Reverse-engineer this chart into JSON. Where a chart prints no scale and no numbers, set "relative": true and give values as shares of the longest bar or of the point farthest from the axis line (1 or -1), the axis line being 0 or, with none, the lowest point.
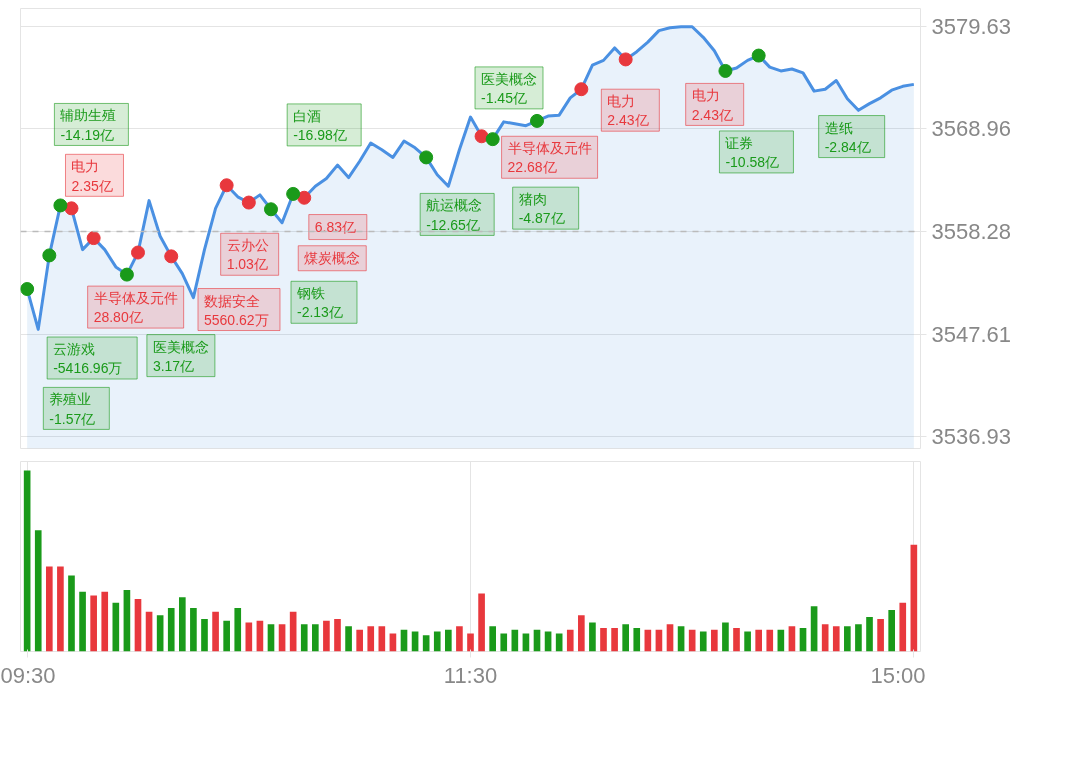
{
  "chart_data": [
    {
      "type": "area",
      "ylim": [
        3535.7,
        3581.5
      ],
      "categories": [
        null,
        null,
        null,
        null,
        null,
        null,
        null,
        null,
        null,
        null,
        null,
        null,
        null,
        null,
        null,
        null,
        null,
        null,
        null,
        null,
        null,
        null,
        null,
        null,
        null,
        null,
        null,
        null,
        null,
        null,
        null,
        null,
        null,
        null,
        null,
        null,
        null,
        null,
        null,
        null,
        null,
        null,
        null,
        null,
        null,
        null,
        null,
        null,
        null,
        null,
        null,
        null,
        null,
        null,
        null,
        null,
        null,
        null,
        null,
        null,
        null,
        null,
        null,
        null,
        null,
        null,
        null,
        null,
        null,
        null,
        null,
        null,
        null,
        null,
        null,
        null,
        null,
        null,
        null,
        null,
        null
      ],
      "yticks": [
        3536.93,
        3547.61,
        3558.28,
        3568.96,
        3579.63
      ],
      "tick_labels": "y",
      "grid": "y",
      "ref_lines": [
        {
          "axis": "y",
          "value": 3558.28,
          "color": "#bbbbbb",
          "line_style": "dashed"
        }
      ],
      "series": [
        {
          "type": "area",
          "color": "#4a90e2",
          "values": [
            3552.3,
            3548.1,
            3555.8,
            3561.0,
            3560.7,
            3556.4,
            3557.6,
            3556.4,
            3554.6,
            3553.8,
            3556.1,
            3561.5,
            3557.8,
            3555.7,
            3553.9,
            3551.4,
            3556.4,
            3560.7,
            3563.1,
            3561.9,
            3561.3,
            3562.1,
            3560.6,
            3559.2,
            3562.2,
            3561.8,
            3563.0,
            3563.8,
            3565.2,
            3563.9,
            3565.6,
            3567.5,
            3566.8,
            3566.0,
            3567.7,
            3567.0,
            3566.0,
            3564.2,
            3563.0,
            3566.8,
            3570.2,
            3568.2,
            3567.9,
            3569.7,
            3569.5,
            3569.3,
            3569.8,
            3570.3,
            3570.4,
            3572.2,
            3573.1,
            3575.6,
            3576.1,
            3577.4,
            3576.2,
            3577.0,
            3578.0,
            3579.2,
            3579.5,
            3579.6,
            3579.6,
            3578.5,
            3577.1,
            3575.0,
            3575.3,
            3576.1,
            3576.6,
            3575.4,
            3575.0,
            3575.2,
            3574.8,
            3572.9,
            3573.1,
            3574.0,
            3572.1,
            3570.9,
            3571.6,
            3572.2,
            3573.0,
            3573.4,
            3573.6
          ]
        },
        {
          "type": "scatter",
          "color": "#e8383d",
          "values": [
            null,
            null,
            null,
            null,
            3560.7,
            null,
            3557.6,
            null,
            null,
            null,
            3556.1,
            null,
            null,
            null,
            null,
            null,
            null,
            null,
            3563.1,
            null,
            3561.3,
            null,
            null,
            null,
            null,
            3561.8,
            null,
            null,
            null,
            null,
            null,
            null,
            null,
            null,
            null,
            null,
            null,
            null,
            null,
            null,
            null,
            3568.2,
            null,
            null,
            null,
            null,
            null,
            null,
            null,
            null,
            3573.1,
            null,
            null,
            null,
            3576.2,
            null,
            null,
            null,
            null,
            null,
            null,
            null,
            null,
            null,
            null,
            null,
            null,
            null,
            null,
            null,
            null,
            null,
            null,
            null,
            null,
            null,
            null,
            null,
            null,
            null,
            null
          ]
        },
        {
          "type": "scatter",
          "color": "#1a9a1a",
          "values": [
            3552.3,
            null,
            3555.8,
            3561.0,
            null,
            null,
            null,
            null,
            null,
            3553.8,
            null,
            null,
            null,
            null,
            null,
            null,
            null,
            null,
            null,
            null,
            null,
            null,
            3560.6,
            null,
            3562.2,
            null,
            null,
            null,
            null,
            null,
            null,
            null,
            null,
            null,
            null,
            null,
            3566.0,
            null,
            null,
            null,
            null,
            null,
            3567.9,
            null,
            null,
            null,
            3569.8,
            null,
            null,
            null,
            null,
            null,
            null,
            null,
            null,
            null,
            null,
            null,
            null,
            null,
            null,
            null,
            null,
            3575.0,
            null,
            null,
            3576.6,
            null,
            null,
            null,
            null,
            null,
            null,
            null,
            null,
            null,
            null,
            null,
            null,
            null,
            null
          ]
        },
        {
          "type": "scatter",
          "color": "#e8383d",
          "values": [
            null,
            null,
            null,
            null,
            null,
            null,
            null,
            null,
            null,
            null,
            null,
            null,
            null,
            3555.7,
            null,
            null,
            null,
            null,
            null,
            null,
            null,
            null,
            null,
            null,
            null,
            null,
            null,
            null,
            null,
            null,
            null,
            null,
            null,
            null,
            null,
            null,
            null,
            null,
            null,
            null,
            null,
            null,
            null,
            null,
            null,
            null,
            null,
            null,
            null,
            null,
            null,
            null,
            null,
            null,
            null,
            null,
            null,
            null,
            null,
            null,
            null,
            null,
            null,
            null,
            null,
            null,
            null,
            null,
            null,
            null,
            null,
            null,
            null,
            null,
            null,
            null,
            null,
            null,
            null,
            null,
            null
          ]
        }
      ],
      "annotations": [
        "电力\n2.35亿",
        "半导体及元件\n28.80亿",
        "数据安全\n5560.62万",
        "云办公\n1.03亿",
        "6.83亿",
        "煤炭概念",
        "半导体及元件\n22.68亿",
        "电力\n2.43亿",
        "电力\n2.43亿",
        "云游戏\n-5416.96万",
        "养殖业\n-1.57亿",
        "辅助生殖\n-14.19亿",
        "医美概念\n3.17亿",
        "钢铁\n-2.13亿",
        "白酒\n-16.98亿",
        "航运概念\n-12.65亿",
        "猪肉\n-4.87亿",
        "医美概念\n-1.45亿",
        "证券\n-10.58亿",
        "造纸\n-2.84亿"
      ]
    },
    {
      "type": "bar",
      "relative": true,
      "grid": "x",
      "categories": [
        "09:30",
        null,
        null,
        null,
        null,
        null,
        null,
        null,
        null,
        null,
        null,
        null,
        null,
        null,
        null,
        null,
        null,
        null,
        null,
        null,
        null,
        null,
        null,
        null,
        null,
        null,
        null,
        null,
        null,
        null,
        null,
        null,
        null,
        null,
        null,
        null,
        null,
        null,
        null,
        null,
        "11:30",
        null,
        null,
        null,
        null,
        null,
        null,
        null,
        null,
        null,
        null,
        null,
        null,
        null,
        null,
        null,
        null,
        null,
        null,
        null,
        null,
        null,
        null,
        null,
        null,
        null,
        null,
        null,
        null,
        null,
        null,
        null,
        null,
        null,
        null,
        null,
        null,
        null,
        null,
        null,
        "15:00"
      ],
      "values": [
        1.0,
        0.67,
        0.47,
        0.47,
        0.42,
        0.33,
        0.31,
        0.33,
        0.27,
        0.34,
        0.29,
        0.22,
        0.2,
        0.24,
        0.3,
        0.24,
        0.18,
        0.22,
        0.17,
        0.24,
        0.16,
        0.17,
        0.15,
        0.15,
        0.22,
        0.15,
        0.15,
        0.17,
        0.18,
        0.14,
        0.12,
        0.14,
        0.14,
        0.1,
        0.12,
        0.11,
        0.09,
        0.11,
        0.12,
        0.14,
        0.1,
        0.32,
        0.14,
        0.1,
        0.12,
        0.1,
        0.12,
        0.11,
        0.1,
        0.12,
        0.2,
        0.16,
        0.13,
        0.13,
        0.15,
        0.13,
        0.12,
        0.12,
        0.15,
        0.14,
        0.12,
        0.11,
        0.12,
        0.16,
        0.13,
        0.11,
        0.12,
        0.12,
        0.12,
        0.14,
        0.13,
        0.25,
        0.15,
        0.14,
        0.14,
        0.15,
        0.19,
        0.18,
        0.23,
        0.27,
        0.59
      ],
      "colors": [
        "#1a9a1a",
        "#1a9a1a",
        "#e8383d",
        "#e8383d",
        "#1a9a1a",
        "#1a9a1a",
        "#e8383d",
        "#e8383d",
        "#1a9a1a",
        "#1a9a1a",
        "#e8383d",
        "#e8383d",
        "#1a9a1a",
        "#1a9a1a",
        "#1a9a1a",
        "#1a9a1a",
        "#1a9a1a",
        "#e8383d",
        "#1a9a1a",
        "#1a9a1a",
        "#e8383d",
        "#e8383d",
        "#1a9a1a",
        "#e8383d",
        "#e8383d",
        "#1a9a1a",
        "#1a9a1a",
        "#e8383d",
        "#e8383d",
        "#1a9a1a",
        "#e8383d",
        "#e8383d",
        "#e8383d",
        "#e8383d",
        "#1a9a1a",
        "#1a9a1a",
        "#1a9a1a",
        "#1a9a1a",
        "#1a9a1a",
        "#e8383d",
        "#e8383d",
        "#e8383d",
        "#1a9a1a",
        "#1a9a1a",
        "#1a9a1a",
        "#1a9a1a",
        "#1a9a1a",
        "#1a9a1a",
        "#1a9a1a",
        "#e8383d",
        "#e8383d",
        "#1a9a1a",
        "#e8383d",
        "#e8383d",
        "#1a9a1a",
        "#1a9a1a",
        "#e8383d",
        "#e8383d",
        "#e8383d",
        "#1a9a1a",
        "#e8383d",
        "#1a9a1a",
        "#e8383d",
        "#1a9a1a",
        "#e8383d",
        "#1a9a1a",
        "#e8383d",
        "#e8383d",
        "#1a9a1a",
        "#e8383d",
        "#1a9a1a",
        "#1a9a1a",
        "#e8383d",
        "#e8383d",
        "#1a9a1a",
        "#1a9a1a",
        "#1a9a1a",
        "#e8383d",
        "#1a9a1a",
        "#e8383d",
        "#e8383d"
      ]
    }
  ]
}
